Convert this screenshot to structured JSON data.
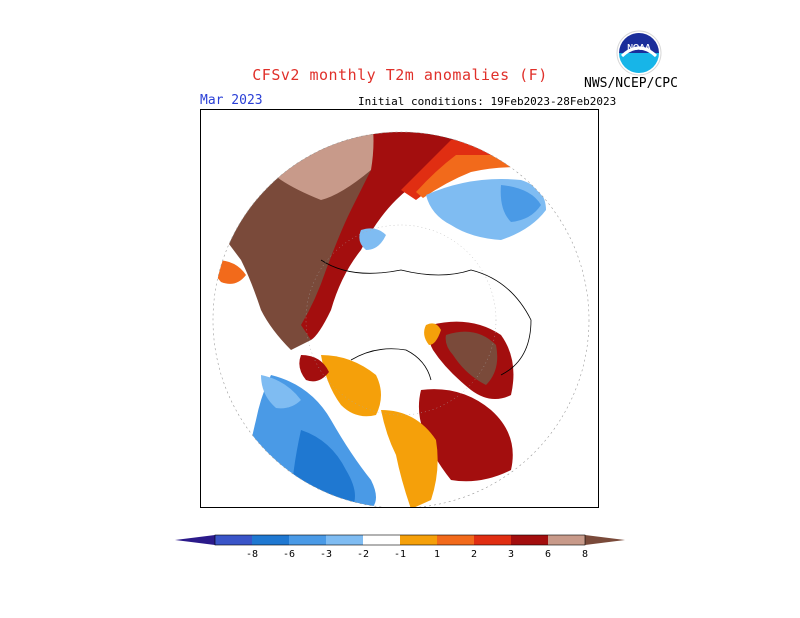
{
  "header": {
    "title": "CFSv2 monthly T2m anomalies (F)",
    "month": "Mar 2023",
    "initial_conditions": "Initial conditions: 19Feb2023-28Feb2023",
    "agency": "NWS/NCEP/CPC",
    "logo_text": "NOAA"
  },
  "colors": {
    "title": "#e0302a",
    "month": "#2a3fd6"
  },
  "legend": {
    "bins": [
      {
        "color": "#2b1a8a"
      },
      {
        "color": "#3a55c8"
      },
      {
        "color": "#1f78d1"
      },
      {
        "color": "#4a9ae6"
      },
      {
        "color": "#7fbcf2"
      },
      {
        "color": "#ffffff"
      },
      {
        "color": "#f5a00a"
      },
      {
        "color": "#f26a1b"
      },
      {
        "color": "#e02e12"
      },
      {
        "color": "#a30e0e"
      },
      {
        "color": "#c89a8a"
      },
      {
        "color": "#7a4a3a"
      }
    ],
    "ticks": [
      "-8",
      "-6",
      "-3",
      "-2",
      "-1",
      "1",
      "2",
      "3",
      "6",
      "8"
    ]
  }
}
